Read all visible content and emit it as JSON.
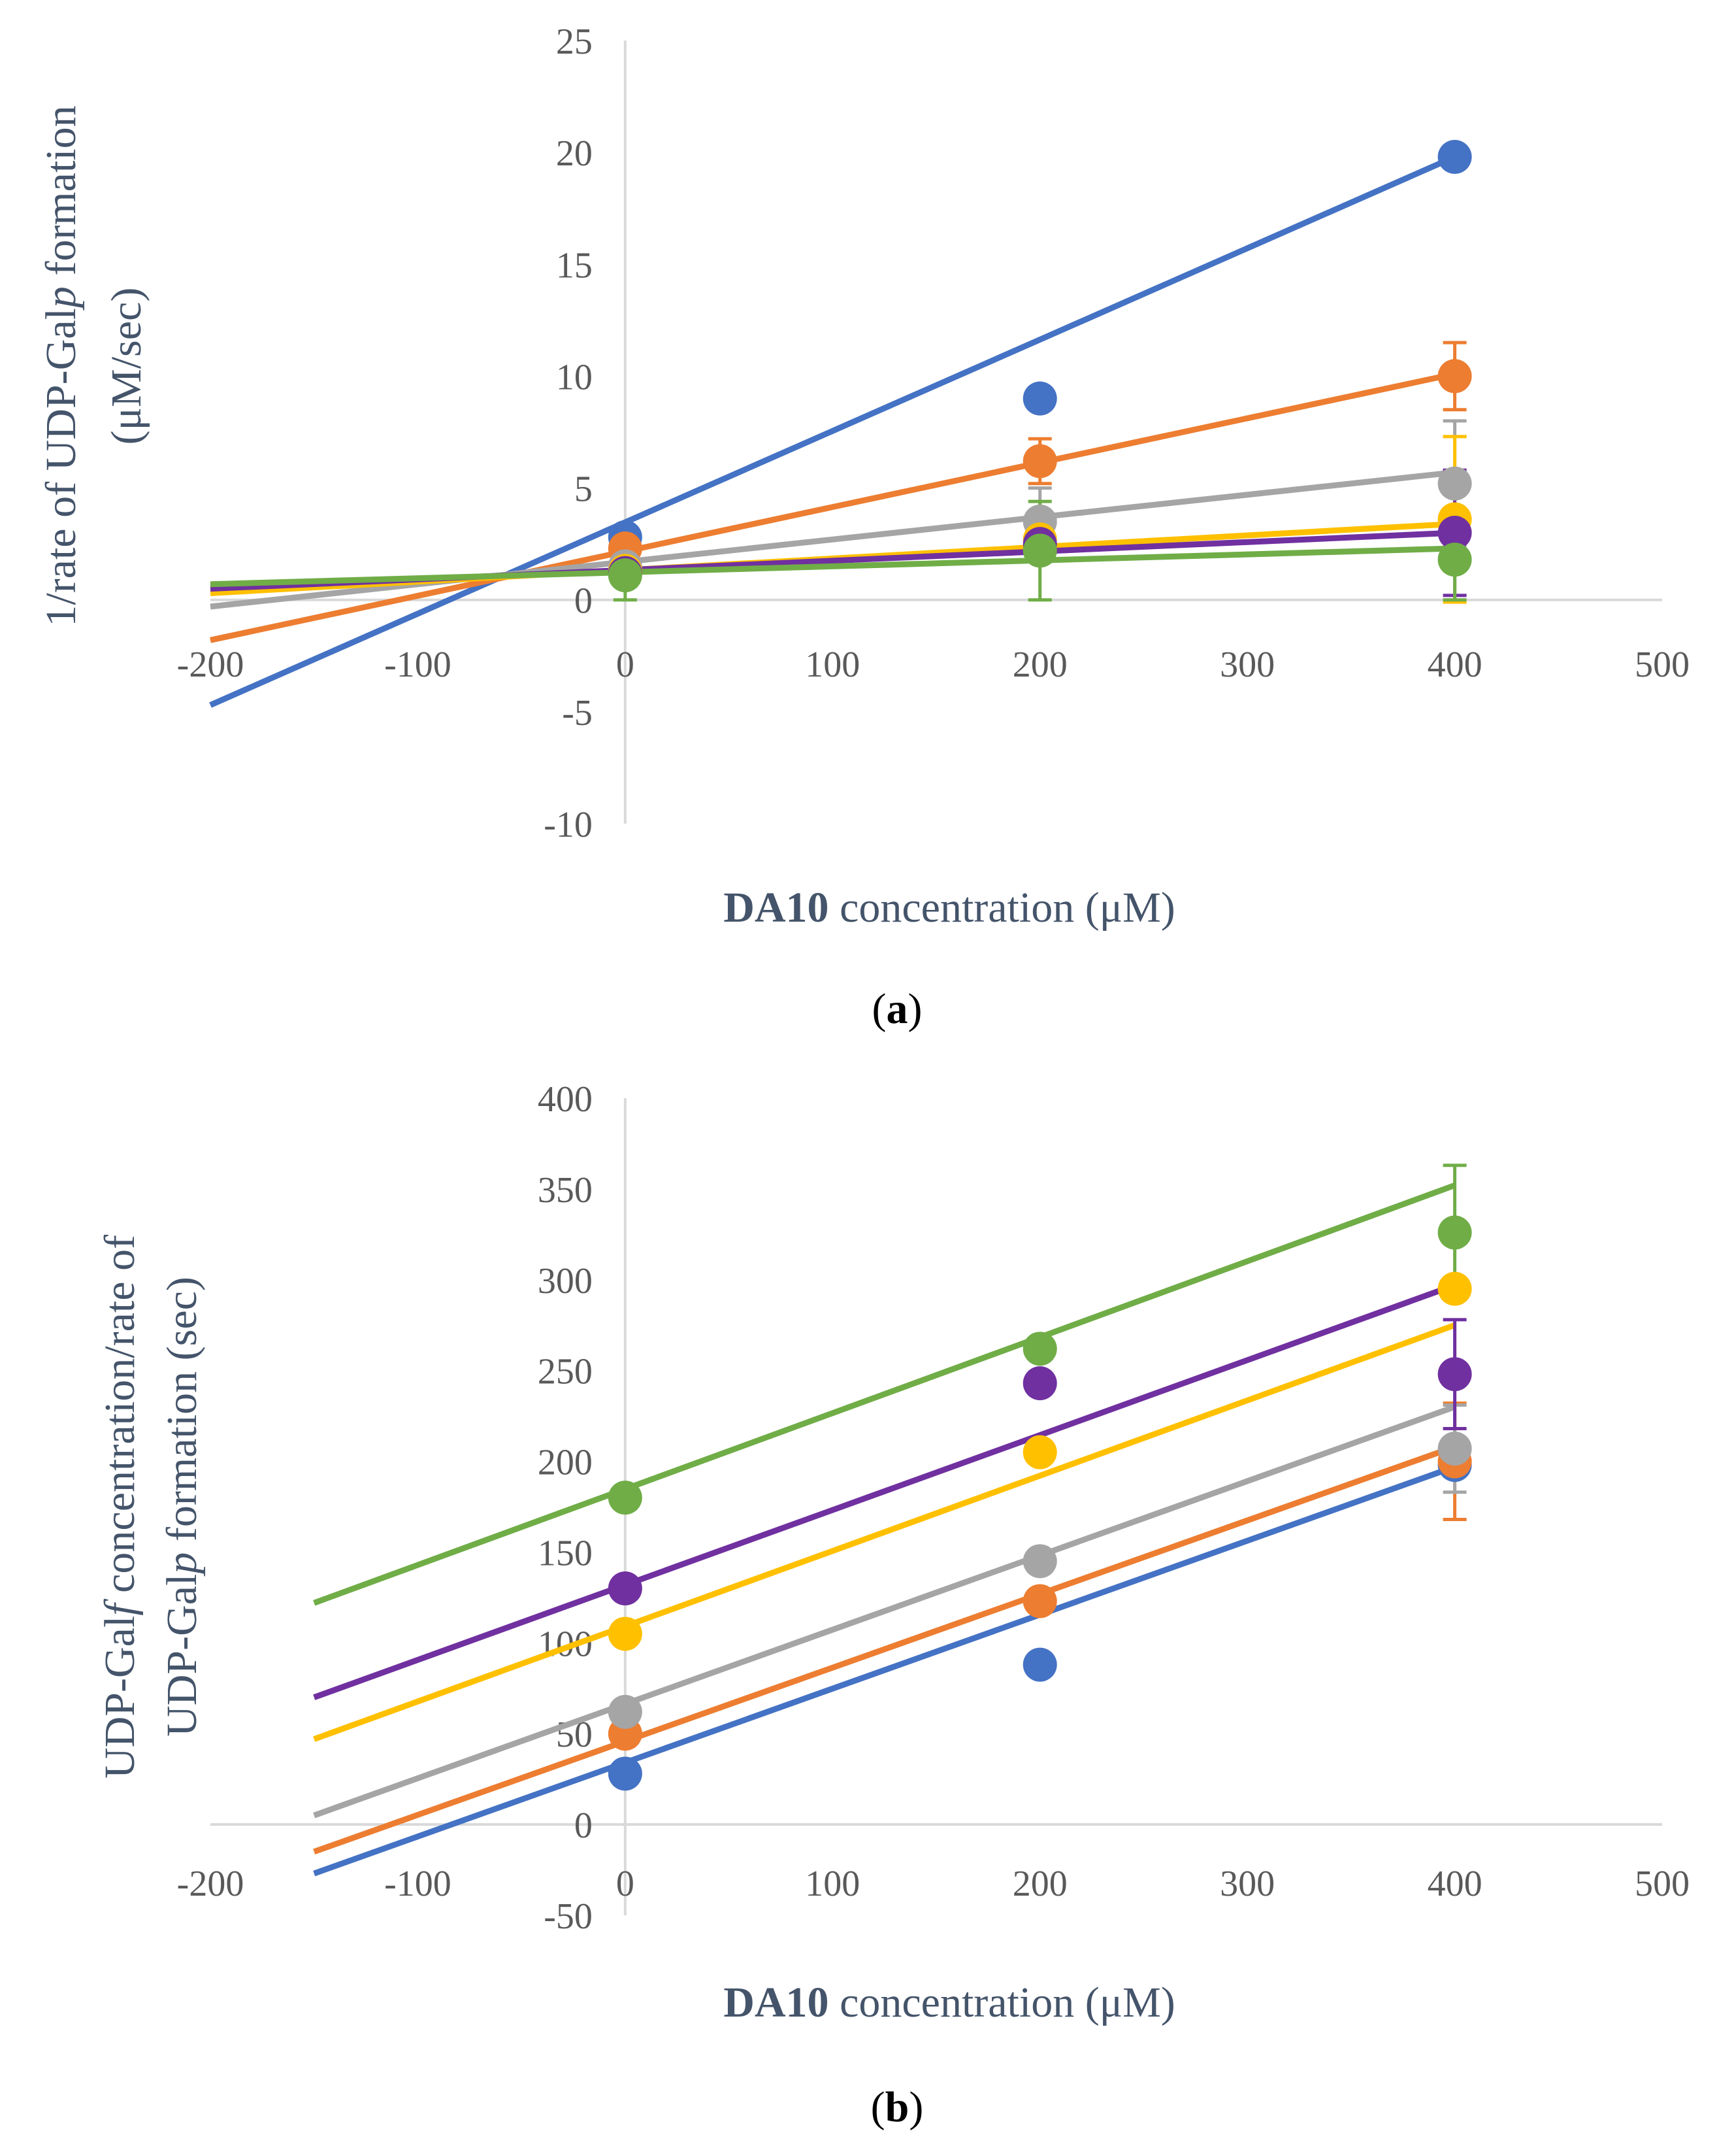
{
  "chart_data": [
    {
      "type": "scatter",
      "panel_label": "a",
      "title": "",
      "xlabel_bold": "DA10",
      "xlabel_rest": " concentration (μM)",
      "ylabel_lines": [
        "1/rate of UDP-Gal",
        "p",
        " formation",
        "(μM/sec)"
      ],
      "xlim": [
        -200,
        500
      ],
      "ylim": [
        -10,
        25
      ],
      "xticks": [
        "-200",
        "-100",
        "0",
        "100",
        "200",
        "300",
        "400",
        "500"
      ],
      "yticks": [
        "-10",
        "-5",
        "0",
        "5",
        "10",
        "15",
        "20",
        "25"
      ],
      "grid": false,
      "x": [
        0,
        200,
        400
      ],
      "series": [
        {
          "name": "blue",
          "color": "#4472c4",
          "values": [
            2.8,
            9.0,
            19.8
          ],
          "errors": [
            0,
            0,
            0
          ],
          "line": {
            "x": [
              -200,
              400
            ],
            "y": [
              -4.7,
              19.8
            ]
          }
        },
        {
          "name": "orange",
          "color": "#ed7d31",
          "values": [
            2.3,
            6.2,
            10.0
          ],
          "errors": [
            0,
            1.0,
            1.5
          ],
          "line": {
            "x": [
              -200,
              400
            ],
            "y": [
              -1.8,
              10.1
            ]
          }
        },
        {
          "name": "gray",
          "color": "#a5a5a5",
          "values": [
            1.5,
            3.5,
            5.2
          ],
          "errors": [
            0,
            1.5,
            2.8
          ],
          "line": {
            "x": [
              -200,
              400
            ],
            "y": [
              -0.3,
              5.7
            ]
          }
        },
        {
          "name": "yellow",
          "color": "#ffc000",
          "values": [
            1.3,
            2.7,
            3.6
          ],
          "errors": [
            0,
            0.8,
            3.7
          ],
          "line": {
            "x": [
              -200,
              400
            ],
            "y": [
              0.3,
              3.4
            ]
          }
        },
        {
          "name": "purple",
          "color": "#7030a0",
          "values": [
            1.2,
            2.5,
            3.0
          ],
          "errors": [
            0,
            0.8,
            2.8
          ],
          "line": {
            "x": [
              -200,
              400
            ],
            "y": [
              0.5,
              3.0
            ]
          }
        },
        {
          "name": "green",
          "color": "#70ad47",
          "values": [
            1.1,
            2.2,
            1.8
          ],
          "errors": [
            1.1,
            2.2,
            1.8
          ],
          "line": {
            "x": [
              -200,
              400
            ],
            "y": [
              0.7,
              2.3
            ]
          }
        }
      ]
    },
    {
      "type": "scatter",
      "panel_label": "b",
      "title": "",
      "xlabel_bold": "DA10",
      "xlabel_rest": " concentration (μM)",
      "ylabel_lines": [
        "UDP-Gal",
        "f",
        " concentration/rate of",
        "UDP-Gal",
        "p",
        " formation (sec)"
      ],
      "xlim": [
        -200,
        500
      ],
      "ylim": [
        -50,
        400
      ],
      "xticks": [
        "-200",
        "-100",
        "0",
        "100",
        "200",
        "300",
        "400",
        "500"
      ],
      "yticks": [
        "-50",
        "0",
        "50",
        "100",
        "150",
        "200",
        "250",
        "300",
        "350",
        "400"
      ],
      "grid": false,
      "x": [
        0,
        200,
        400
      ],
      "series": [
        {
          "name": "blue",
          "color": "#4472c4",
          "values": [
            28,
            88,
            198
          ],
          "errors": [
            0,
            0,
            0
          ],
          "line": {
            "x": [
              -150,
              400
            ],
            "y": [
              -27,
              197
            ]
          }
        },
        {
          "name": "orange",
          "color": "#ed7d31",
          "values": [
            50,
            123,
            200
          ],
          "errors": [
            0,
            0,
            32
          ],
          "line": {
            "x": [
              -150,
              400
            ],
            "y": [
              -15,
              208
            ]
          }
        },
        {
          "name": "gray",
          "color": "#a5a5a5",
          "values": [
            62,
            145,
            207
          ],
          "errors": [
            0,
            0,
            24
          ],
          "line": {
            "x": [
              -150,
              400
            ],
            "y": [
              5,
              230
            ]
          }
        },
        {
          "name": "yellow",
          "color": "#ffc000",
          "values": [
            105,
            205,
            295
          ],
          "errors": [
            0,
            0,
            0
          ],
          "line": {
            "x": [
              -150,
              400
            ],
            "y": [
              47,
              275
            ]
          }
        },
        {
          "name": "purple",
          "color": "#7030a0",
          "values": [
            130,
            243,
            248
          ],
          "errors": [
            0,
            0,
            30
          ],
          "line": {
            "x": [
              -150,
              400
            ],
            "y": [
              70,
              297
            ]
          }
        },
        {
          "name": "green",
          "color": "#70ad47",
          "values": [
            180,
            262,
            326
          ],
          "errors": [
            0,
            0,
            37
          ],
          "line": {
            "x": [
              -150,
              400
            ],
            "y": [
              122,
              352
            ]
          }
        }
      ]
    }
  ]
}
